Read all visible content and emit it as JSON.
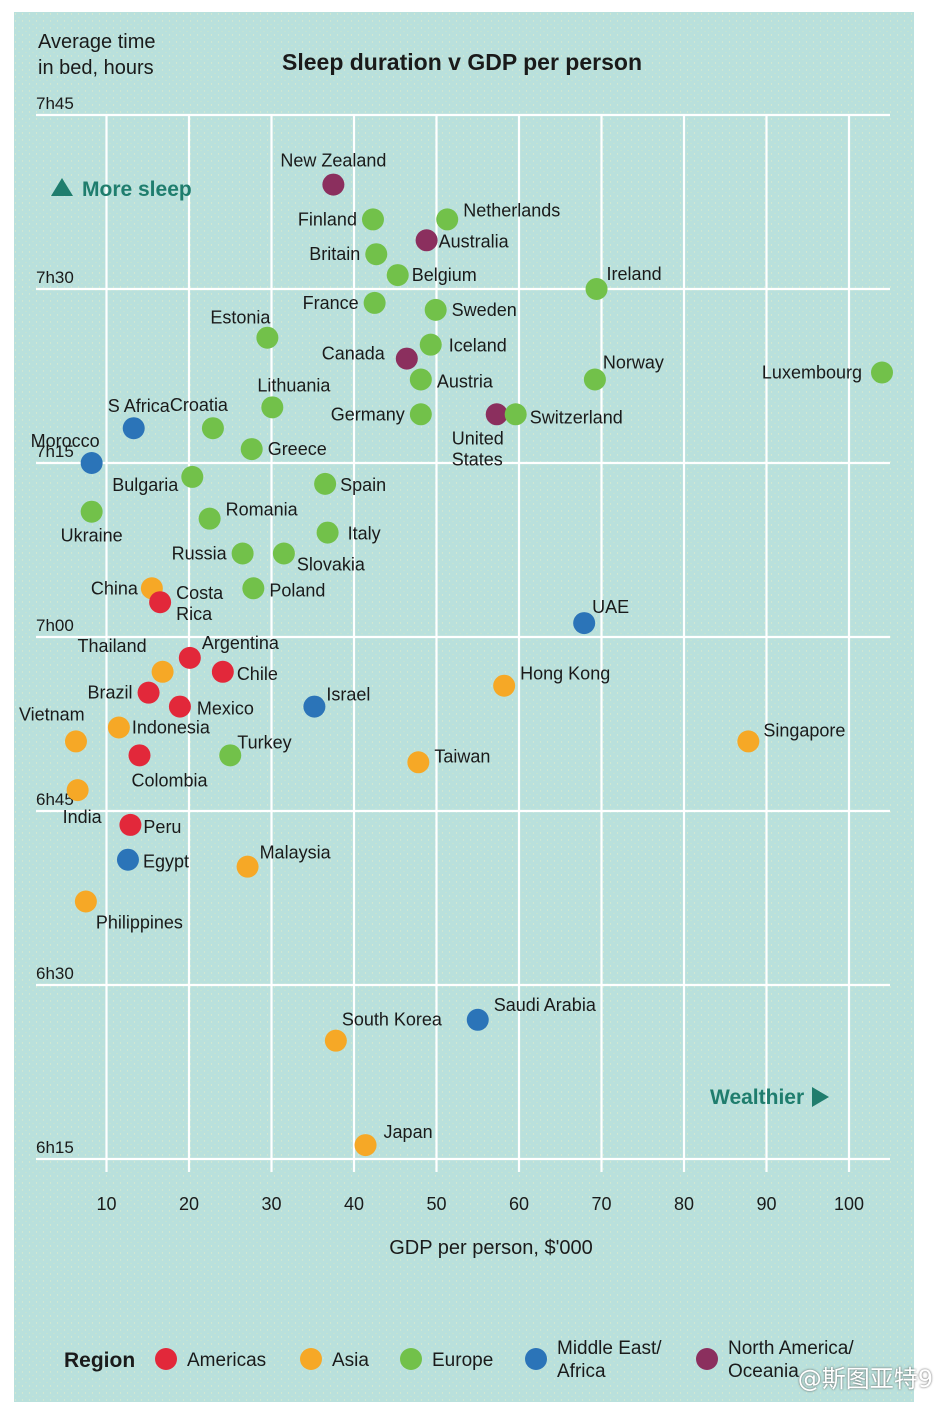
{
  "chart_data": {
    "type": "scatter",
    "title": "Sleep duration v GDP per person",
    "ylabel": "Average time in bed, hours",
    "ylabel_lines": [
      "Average time",
      "in bed, hours"
    ],
    "xlabel": "GDP per person, $'000",
    "x_ticks": [
      10,
      20,
      30,
      40,
      50,
      60,
      70,
      80,
      90,
      100
    ],
    "y_ticks": [
      {
        "label": "7h45",
        "hours": 7.75
      },
      {
        "label": "7h30",
        "hours": 7.5
      },
      {
        "label": "7h15",
        "hours": 7.25
      },
      {
        "label": "7h00",
        "hours": 7.0
      },
      {
        "label": "6h45",
        "hours": 6.75
      },
      {
        "label": "6h30",
        "hours": 6.5
      },
      {
        "label": "6h15",
        "hours": 6.25
      }
    ],
    "xlim": [
      0,
      105
    ],
    "ylim": [
      6.23,
      7.75
    ],
    "grid": true,
    "annotations": {
      "more_sleep": "More sleep",
      "wealthier": "Wealthier"
    },
    "legend": {
      "title": "Region",
      "placement": "bottom",
      "items": [
        {
          "key": "americas",
          "lines": [
            "Americas"
          ]
        },
        {
          "key": "asia",
          "lines": [
            "Asia"
          ]
        },
        {
          "key": "europe",
          "lines": [
            "Europe"
          ]
        },
        {
          "key": "mideast",
          "lines": [
            "Middle East/",
            "Africa"
          ]
        },
        {
          "key": "naoc",
          "lines": [
            "North America/",
            "Oceania"
          ]
        }
      ]
    },
    "colors": {
      "americas": "#e2283a",
      "asia": "#f6a826",
      "europe": "#72c14a",
      "mideast": "#2b74b8",
      "naoc": "#8b2f5e",
      "background": "#b9e0dc",
      "grid": "#ffffff",
      "accent": "#1f7d6d",
      "text": "#1a1a1a"
    },
    "points": [
      {
        "name": "New Zealand",
        "x": 37.5,
        "y": 7.65,
        "region": "naoc"
      },
      {
        "name": "Netherlands",
        "x": 51.3,
        "y": 7.6,
        "region": "europe"
      },
      {
        "name": "Finland",
        "x": 42.3,
        "y": 7.6,
        "region": "europe"
      },
      {
        "name": "Australia",
        "x": 48.8,
        "y": 7.57,
        "region": "naoc"
      },
      {
        "name": "Britain",
        "x": 42.7,
        "y": 7.55,
        "region": "europe"
      },
      {
        "name": "Belgium",
        "x": 45.3,
        "y": 7.52,
        "region": "europe"
      },
      {
        "name": "Ireland",
        "x": 69.4,
        "y": 7.5,
        "region": "europe"
      },
      {
        "name": "France",
        "x": 42.5,
        "y": 7.48,
        "region": "europe"
      },
      {
        "name": "Sweden",
        "x": 49.9,
        "y": 7.47,
        "region": "europe"
      },
      {
        "name": "Estonia",
        "x": 29.5,
        "y": 7.43,
        "region": "europe"
      },
      {
        "name": "Iceland",
        "x": 49.3,
        "y": 7.42,
        "region": "europe"
      },
      {
        "name": "Canada",
        "x": 46.4,
        "y": 7.4,
        "region": "naoc"
      },
      {
        "name": "Austria",
        "x": 48.1,
        "y": 7.37,
        "region": "europe"
      },
      {
        "name": "Norway",
        "x": 69.2,
        "y": 7.37,
        "region": "europe"
      },
      {
        "name": "Luxembourg",
        "x": 104.0,
        "y": 7.38,
        "region": "europe"
      },
      {
        "name": "Lithuania",
        "x": 30.1,
        "y": 7.33,
        "region": "europe"
      },
      {
        "name": "Germany",
        "x": 48.1,
        "y": 7.32,
        "region": "europe"
      },
      {
        "name": "United States",
        "x": 57.3,
        "y": 7.32,
        "region": "naoc"
      },
      {
        "name": "Switzerland",
        "x": 59.6,
        "y": 7.32,
        "region": "europe"
      },
      {
        "name": "S Africa",
        "x": 13.3,
        "y": 7.3,
        "region": "mideast"
      },
      {
        "name": "Croatia",
        "x": 22.9,
        "y": 7.3,
        "region": "europe"
      },
      {
        "name": "Greece",
        "x": 27.6,
        "y": 7.27,
        "region": "europe"
      },
      {
        "name": "Morocco",
        "x": 8.2,
        "y": 7.25,
        "region": "mideast"
      },
      {
        "name": "Bulgaria",
        "x": 20.4,
        "y": 7.23,
        "region": "europe"
      },
      {
        "name": "Spain",
        "x": 36.5,
        "y": 7.22,
        "region": "europe"
      },
      {
        "name": "Ukraine",
        "x": 8.2,
        "y": 7.18,
        "region": "europe"
      },
      {
        "name": "Romania",
        "x": 22.5,
        "y": 7.17,
        "region": "europe"
      },
      {
        "name": "Italy",
        "x": 36.8,
        "y": 7.15,
        "region": "europe"
      },
      {
        "name": "Russia",
        "x": 26.5,
        "y": 7.12,
        "region": "europe"
      },
      {
        "name": "Slovakia",
        "x": 31.5,
        "y": 7.12,
        "region": "europe"
      },
      {
        "name": "China",
        "x": 15.5,
        "y": 7.07,
        "region": "asia"
      },
      {
        "name": "Poland",
        "x": 27.8,
        "y": 7.07,
        "region": "europe"
      },
      {
        "name": "Costa Rica",
        "x": 16.5,
        "y": 7.05,
        "region": "americas"
      },
      {
        "name": "UAE",
        "x": 67.9,
        "y": 7.02,
        "region": "mideast"
      },
      {
        "name": "Argentina",
        "x": 20.1,
        "y": 6.97,
        "region": "americas"
      },
      {
        "name": "Chile",
        "x": 24.1,
        "y": 6.95,
        "region": "americas"
      },
      {
        "name": "Thailand",
        "x": 16.8,
        "y": 6.95,
        "region": "asia"
      },
      {
        "name": "Hong Kong",
        "x": 58.2,
        "y": 6.93,
        "region": "asia"
      },
      {
        "name": "Brazil",
        "x": 15.1,
        "y": 6.92,
        "region": "americas"
      },
      {
        "name": "Mexico",
        "x": 18.9,
        "y": 6.9,
        "region": "americas"
      },
      {
        "name": "Israel",
        "x": 35.2,
        "y": 6.9,
        "region": "mideast"
      },
      {
        "name": "Indonesia",
        "x": 11.5,
        "y": 6.87,
        "region": "asia"
      },
      {
        "name": "Vietnam",
        "x": 6.3,
        "y": 6.85,
        "region": "asia"
      },
      {
        "name": "Singapore",
        "x": 87.8,
        "y": 6.85,
        "region": "asia"
      },
      {
        "name": "Colombia",
        "x": 14.0,
        "y": 6.83,
        "region": "americas"
      },
      {
        "name": "Turkey",
        "x": 25.0,
        "y": 6.83,
        "region": "europe"
      },
      {
        "name": "Taiwan",
        "x": 47.8,
        "y": 6.82,
        "region": "asia"
      },
      {
        "name": "India",
        "x": 6.5,
        "y": 6.78,
        "region": "asia"
      },
      {
        "name": "Peru",
        "x": 12.9,
        "y": 6.73,
        "region": "americas"
      },
      {
        "name": "Egypt",
        "x": 12.6,
        "y": 6.68,
        "region": "mideast"
      },
      {
        "name": "Malaysia",
        "x": 27.1,
        "y": 6.67,
        "region": "asia"
      },
      {
        "name": "Philippines",
        "x": 7.5,
        "y": 6.62,
        "region": "asia"
      },
      {
        "name": "Saudi Arabia",
        "x": 55.0,
        "y": 6.45,
        "region": "mideast"
      },
      {
        "name": "South Korea",
        "x": 37.8,
        "y": 6.42,
        "region": "asia"
      },
      {
        "name": "Japan",
        "x": 41.4,
        "y": 6.27,
        "region": "asia"
      }
    ]
  },
  "watermark": "@斯图亚特9"
}
